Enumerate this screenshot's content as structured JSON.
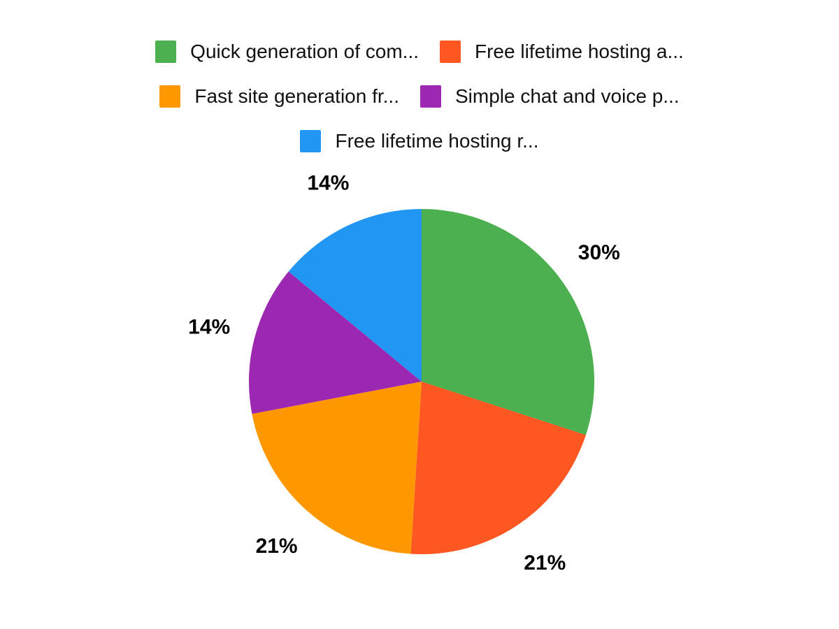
{
  "chart_data": {
    "type": "pie",
    "labels": [
      "Quick generation of com...",
      "Free lifetime hosting a...",
      "Fast site generation fr...",
      "Simple chat and voice p...",
      "Free lifetime hosting r..."
    ],
    "values": [
      30,
      21,
      21,
      14,
      14
    ],
    "percent_labels": [
      "30%",
      "21%",
      "21%",
      "14%",
      "14%"
    ],
    "colors": [
      "#4CAF50",
      "#FF5722",
      "#FF9800",
      "#9C27B0",
      "#2196F3"
    ],
    "legend_position": "top",
    "start_angle_deg": 0,
    "direction": "clockwise",
    "background": "#ffffff",
    "label_color": "#000000"
  }
}
